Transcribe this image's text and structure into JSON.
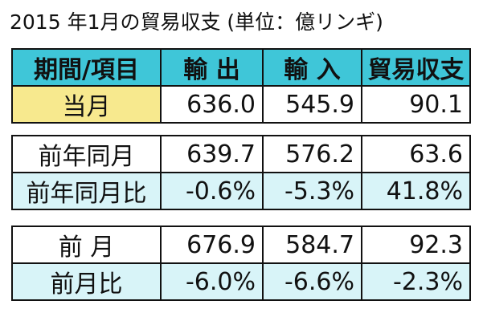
{
  "title": "2015 年1月の貿易収支 (単位：億リンギ)",
  "header": {
    "item": "期間/項目",
    "exports": "輸 出",
    "imports": "輸 入",
    "balance": "貿易収支"
  },
  "current": {
    "label": "当月",
    "exports": "636.0",
    "imports": "545.9",
    "balance": "90.1"
  },
  "year_ago": {
    "label": "前年同月",
    "exports": "639.7",
    "imports": "576.2",
    "balance": "63.6"
  },
  "year_ago_ratio": {
    "label": "前年同月比",
    "exports": "-0.6%",
    "imports": "-5.3%",
    "balance": "41.8%"
  },
  "prev_month": {
    "label": "前 月",
    "exports": "676.9",
    "imports": "584.7",
    "balance": "92.3"
  },
  "prev_month_ratio": {
    "label": "前月比",
    "exports": "-6.0%",
    "imports": "-6.6%",
    "balance": "-2.3%"
  },
  "colors": {
    "header_bg": "#3fc6d8",
    "current_label_bg": "#f7e98e",
    "ratio_row_bg": "#d8f4f8"
  }
}
